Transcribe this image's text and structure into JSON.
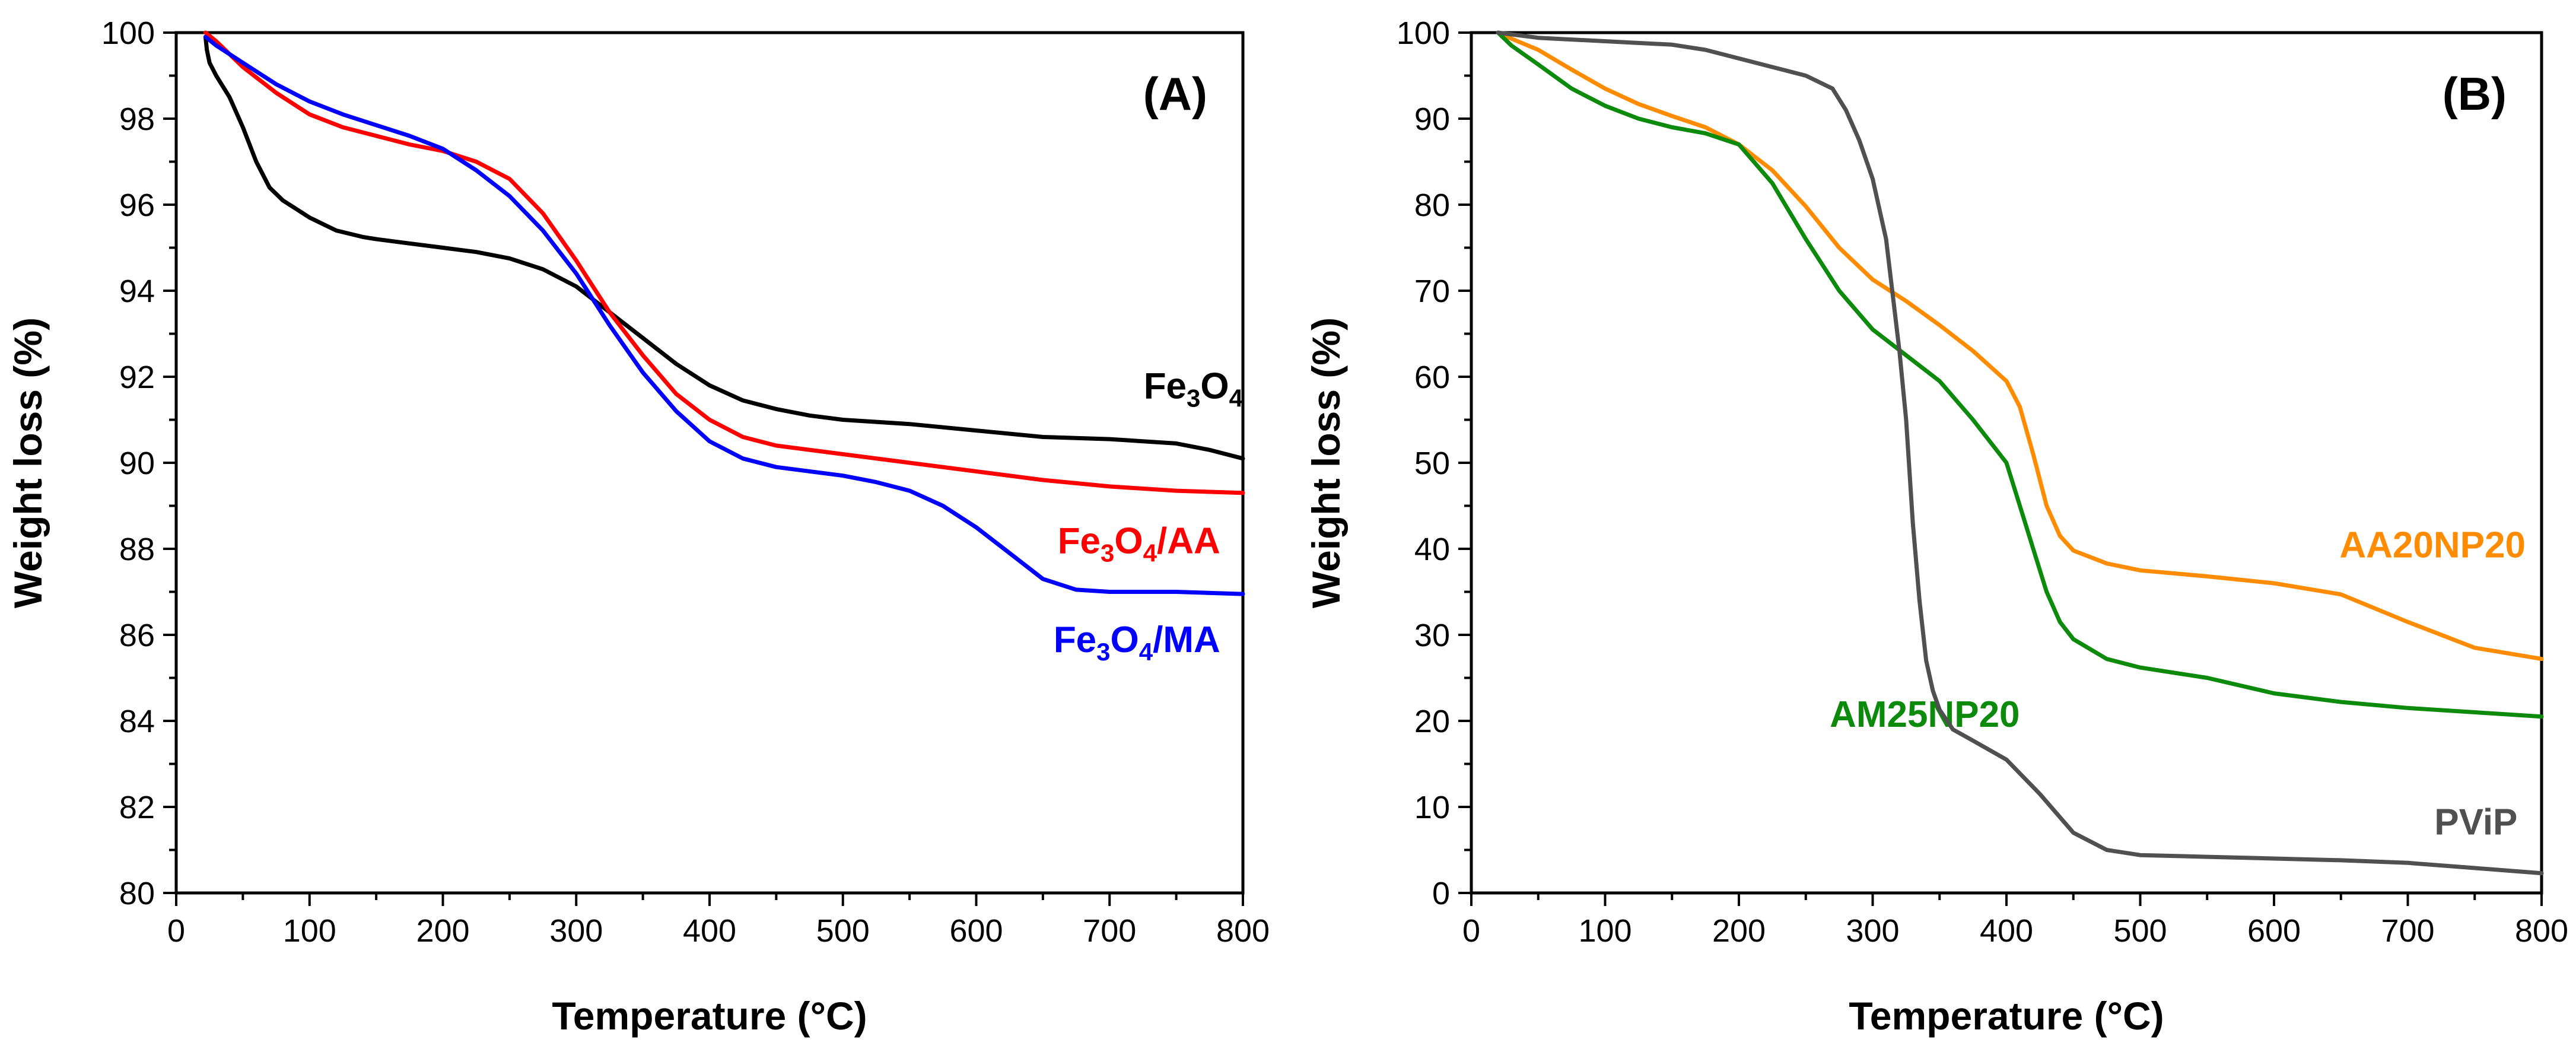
{
  "chart_data": [
    {
      "type": "line",
      "panel_label": "(A)",
      "xlabel": "Temperature (°C)",
      "ylabel": "Weight loss (%)",
      "xlim": [
        0,
        800
      ],
      "ylim": [
        80,
        100
      ],
      "xticks": [
        0,
        100,
        200,
        300,
        400,
        500,
        600,
        700,
        800
      ],
      "yticks": [
        80,
        82,
        84,
        86,
        88,
        90,
        92,
        94,
        96,
        98,
        100
      ],
      "grid": false,
      "series": [
        {
          "name": "Fe3O4",
          "label_parts": [
            {
              "t": "Fe"
            },
            {
              "t": "3",
              "sub": true
            },
            {
              "t": "O"
            },
            {
              "t": "4",
              "sub": true
            }
          ],
          "color": "#000000",
          "label_at": [
            800,
            91.5
          ],
          "x": [
            22,
            23,
            25,
            30,
            40,
            50,
            60,
            70,
            80,
            90,
            100,
            120,
            140,
            150,
            175,
            200,
            225,
            250,
            275,
            300,
            325,
            350,
            375,
            400,
            425,
            450,
            475,
            500,
            550,
            600,
            650,
            700,
            750,
            775,
            800
          ],
          "y": [
            99.9,
            99.6,
            99.3,
            99.0,
            98.5,
            97.8,
            97.0,
            96.4,
            96.1,
            95.9,
            95.7,
            95.4,
            95.25,
            95.2,
            95.1,
            95.0,
            94.9,
            94.75,
            94.5,
            94.1,
            93.5,
            92.9,
            92.3,
            91.8,
            91.45,
            91.25,
            91.1,
            91.0,
            90.9,
            90.75,
            90.6,
            90.55,
            90.45,
            90.3,
            90.1
          ]
        },
        {
          "name": "Fe3O4/AA",
          "label_parts": [
            {
              "t": "Fe"
            },
            {
              "t": "3",
              "sub": true
            },
            {
              "t": "O"
            },
            {
              "t": "4",
              "sub": true
            },
            {
              "t": "/AA"
            }
          ],
          "color": "#ff0000",
          "label_at": [
            783,
            87.9
          ],
          "x": [
            22,
            30,
            50,
            75,
            100,
            125,
            150,
            175,
            200,
            225,
            250,
            275,
            300,
            325,
            350,
            375,
            400,
            425,
            450,
            500,
            550,
            600,
            650,
            700,
            750,
            800
          ],
          "y": [
            100.0,
            99.8,
            99.2,
            98.6,
            98.1,
            97.8,
            97.6,
            97.4,
            97.25,
            97.0,
            96.6,
            95.8,
            94.7,
            93.5,
            92.5,
            91.6,
            91.0,
            90.6,
            90.4,
            90.2,
            90.0,
            89.8,
            89.6,
            89.45,
            89.35,
            89.3
          ]
        },
        {
          "name": "Fe3O4/MA",
          "label_parts": [
            {
              "t": "Fe"
            },
            {
              "t": "3",
              "sub": true
            },
            {
              "t": "O"
            },
            {
              "t": "4",
              "sub": true
            },
            {
              "t": "/MA"
            }
          ],
          "color": "#0000ff",
          "label_at": [
            783,
            85.6
          ],
          "x": [
            22,
            30,
            50,
            75,
            100,
            125,
            150,
            175,
            200,
            225,
            250,
            275,
            300,
            325,
            350,
            375,
            400,
            425,
            450,
            500,
            525,
            550,
            575,
            600,
            625,
            650,
            675,
            700,
            750,
            800
          ],
          "y": [
            99.9,
            99.7,
            99.3,
            98.8,
            98.4,
            98.1,
            97.85,
            97.6,
            97.3,
            96.8,
            96.2,
            95.4,
            94.4,
            93.2,
            92.1,
            91.2,
            90.5,
            90.1,
            89.9,
            89.7,
            89.55,
            89.35,
            89.0,
            88.5,
            87.9,
            87.3,
            87.05,
            87.0,
            87.0,
            86.95
          ]
        }
      ]
    },
    {
      "type": "line",
      "panel_label": "(B)",
      "xlabel": "Temperature (°C)",
      "ylabel": "Weight loss (%)",
      "xlim": [
        0,
        800
      ],
      "ylim": [
        0,
        100
      ],
      "xticks": [
        0,
        100,
        200,
        300,
        400,
        500,
        600,
        700,
        800
      ],
      "yticks": [
        0,
        10,
        20,
        30,
        40,
        50,
        60,
        70,
        80,
        90,
        100
      ],
      "grid": false,
      "series": [
        {
          "name": "AA20NP20",
          "label_parts": [
            {
              "t": "AA20NP20"
            }
          ],
          "color": "#ff8c00",
          "label_at": [
            788,
            39
          ],
          "x": [
            20,
            30,
            50,
            75,
            100,
            125,
            150,
            175,
            200,
            225,
            250,
            275,
            300,
            325,
            350,
            375,
            400,
            410,
            420,
            430,
            440,
            450,
            475,
            500,
            550,
            600,
            650,
            700,
            750,
            800
          ],
          "y": [
            100,
            99.3,
            98.0,
            95.7,
            93.5,
            91.7,
            90.3,
            89.0,
            87.0,
            84.0,
            79.8,
            75.0,
            71.3,
            68.8,
            66.0,
            63.0,
            59.5,
            56.5,
            51.0,
            45.0,
            41.5,
            39.8,
            38.3,
            37.5,
            36.8,
            36.0,
            34.7,
            31.5,
            28.5,
            27.2
          ]
        },
        {
          "name": "AM25NP20",
          "label_parts": [
            {
              "t": "AM25NP20"
            }
          ],
          "color": "#0b8a0b",
          "label_at": [
            410,
            19.3
          ],
          "x": [
            20,
            30,
            50,
            75,
            100,
            125,
            150,
            175,
            200,
            225,
            250,
            275,
            300,
            325,
            350,
            375,
            400,
            410,
            420,
            430,
            440,
            450,
            475,
            500,
            550,
            600,
            650,
            700,
            750,
            800
          ],
          "y": [
            100,
            98.5,
            96.3,
            93.5,
            91.5,
            90.0,
            89.0,
            88.3,
            87.0,
            82.5,
            76.0,
            70.0,
            65.5,
            62.5,
            59.5,
            55.0,
            50.0,
            45.0,
            40.0,
            35.0,
            31.5,
            29.5,
            27.2,
            26.2,
            25.0,
            23.2,
            22.2,
            21.5,
            21.0,
            20.5
          ]
        },
        {
          "name": "PViP",
          "label_parts": [
            {
              "t": "PViP"
            }
          ],
          "color": "#505050",
          "label_at": [
            782,
            6.8
          ],
          "x": [
            20,
            50,
            100,
            150,
            175,
            200,
            225,
            250,
            270,
            280,
            290,
            300,
            310,
            320,
            325,
            330,
            335,
            340,
            345,
            350,
            360,
            375,
            400,
            425,
            450,
            475,
            500,
            550,
            600,
            650,
            700,
            750,
            800
          ],
          "y": [
            100,
            99.4,
            99.0,
            98.6,
            98.0,
            97.0,
            96.0,
            95.0,
            93.5,
            91.0,
            87.5,
            83.0,
            76.0,
            63.0,
            55.0,
            43.0,
            34.0,
            27.0,
            23.5,
            21.3,
            19.0,
            17.7,
            15.5,
            11.5,
            7.0,
            5.0,
            4.4,
            4.2,
            4.0,
            3.8,
            3.5,
            2.9,
            2.3
          ]
        }
      ]
    }
  ]
}
